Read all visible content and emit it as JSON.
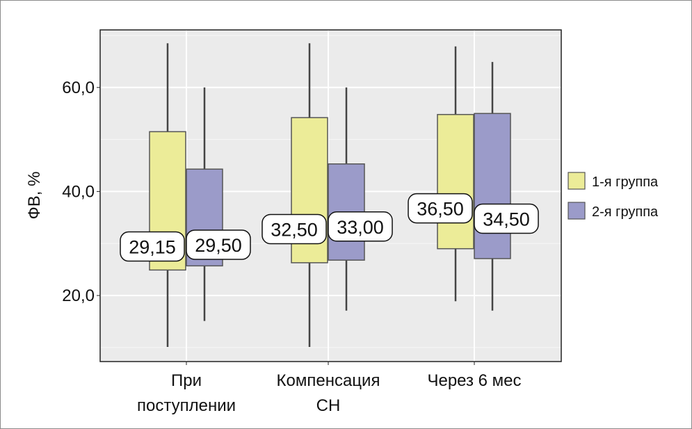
{
  "chart_data": {
    "type": "box",
    "ylabel": "ФВ, %",
    "xlabel": "",
    "ylim": [
      7.3,
      71.1
    ],
    "yticks": [
      "20,0",
      "40,0",
      "60,0"
    ],
    "ytick_values": [
      20,
      40,
      60
    ],
    "grid": true,
    "legend_position": "right",
    "categories": [
      [
        "При",
        "поступлении"
      ],
      [
        "Компенсация",
        "СН"
      ],
      [
        "Через 6 мес"
      ]
    ],
    "series": [
      {
        "name": "1-я группа",
        "color": "#ecec98",
        "boxes": [
          {
            "whisker_low": 10.1,
            "q1": 24.9,
            "median": 29.15,
            "q3": 51.5,
            "whisker_high": 68.5,
            "label": "29,15"
          },
          {
            "whisker_low": 10.1,
            "q1": 26.3,
            "median": 32.5,
            "q3": 54.2,
            "whisker_high": 68.5,
            "label": "32,50"
          },
          {
            "whisker_low": 18.9,
            "q1": 29.0,
            "median": 36.5,
            "q3": 54.8,
            "whisker_high": 67.9,
            "label": "36,50"
          }
        ]
      },
      {
        "name": "2-я группа",
        "color": "#9b9bc9",
        "boxes": [
          {
            "whisker_low": 15.1,
            "q1": 25.7,
            "median": 29.5,
            "q3": 44.3,
            "whisker_high": 60.0,
            "label": "29,50"
          },
          {
            "whisker_low": 17.1,
            "q1": 26.8,
            "median": 33.0,
            "q3": 45.3,
            "whisker_high": 60.0,
            "label": "33,00"
          },
          {
            "whisker_low": 17.1,
            "q1": 27.1,
            "median": 34.5,
            "q3": 55.0,
            "whisker_high": 64.9,
            "label": "34,50"
          }
        ]
      }
    ]
  }
}
